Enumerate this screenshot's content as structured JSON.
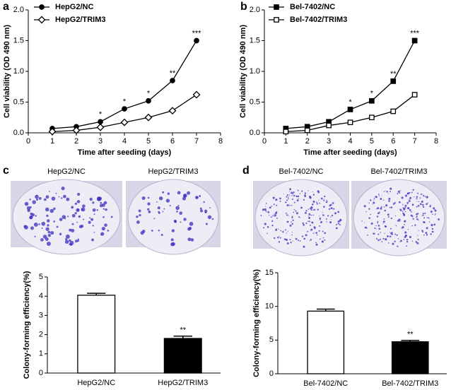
{
  "chart_data": [
    {
      "type": "line",
      "panel": "a",
      "x_label": "Time after seeding (days)",
      "y_label": "Cell viability (OD 490 nm)",
      "x": [
        1,
        2,
        3,
        4,
        5,
        6,
        7
      ],
      "series": [
        {
          "name": "HepG2/NC",
          "color": "#000000",
          "marker": "circle",
          "marker_fill": "#000000",
          "values": [
            0.07,
            0.1,
            0.18,
            0.39,
            0.52,
            0.85,
            1.5
          ]
        },
        {
          "name": "HepG2/TRIM3",
          "color": "#000000",
          "marker": "diamond",
          "marker_fill": "#ffffff",
          "values": [
            0.02,
            0.04,
            0.09,
            0.17,
            0.25,
            0.36,
            0.62
          ]
        }
      ],
      "annotations": [
        {
          "x": 3,
          "text": "*"
        },
        {
          "x": 4,
          "text": "*"
        },
        {
          "x": 5,
          "text": "*"
        },
        {
          "x": 6,
          "text": "**"
        },
        {
          "x": 7,
          "text": "***"
        }
      ],
      "xlim": [
        0,
        8
      ],
      "xticks": [
        0,
        1,
        2,
        3,
        4,
        5,
        6,
        7,
        8
      ],
      "ylim": [
        0,
        2
      ],
      "yticks": [
        {
          "value": 0,
          "label": "0.0"
        },
        {
          "value": 0.5,
          "label": "0.5"
        },
        {
          "value": 1,
          "label": "1.0"
        },
        {
          "value": 1.5,
          "label": "1.5"
        },
        {
          "value": 2,
          "label": "2.0"
        }
      ],
      "legend": "upper left"
    },
    {
      "type": "line",
      "panel": "b",
      "x_label": "Time after seeding (days)",
      "y_label": "Cell viability (OD 490 nm)",
      "x": [
        1,
        2,
        3,
        4,
        5,
        6,
        7
      ],
      "series": [
        {
          "name": "Bel-7402/NC",
          "color": "#000000",
          "marker": "square",
          "marker_fill": "#000000",
          "values": [
            0.07,
            0.1,
            0.18,
            0.38,
            0.52,
            0.84,
            1.5
          ]
        },
        {
          "name": "Bel-7402/TRIM3",
          "color": "#000000",
          "marker": "square",
          "marker_fill": "#ffffff",
          "values": [
            0.02,
            0.04,
            0.12,
            0.17,
            0.25,
            0.35,
            0.62
          ]
        }
      ],
      "annotations": [
        {
          "x": 4,
          "text": "*"
        },
        {
          "x": 5,
          "text": "*"
        },
        {
          "x": 6,
          "text": "**"
        },
        {
          "x": 7,
          "text": "***"
        }
      ],
      "xlim": [
        0,
        8
      ],
      "xticks": [
        0,
        1,
        2,
        3,
        4,
        5,
        6,
        7,
        8
      ],
      "ylim": [
        0,
        2
      ],
      "yticks": [
        {
          "value": 0,
          "label": "0.0"
        },
        {
          "value": 0.5,
          "label": "0.5"
        },
        {
          "value": 1,
          "label": "1.0"
        },
        {
          "value": 1.5,
          "label": "1.5"
        },
        {
          "value": 2,
          "label": "2.0"
        }
      ],
      "legend": "upper left"
    },
    {
      "type": "bar",
      "panel": "c",
      "image_labels": [
        "HepG2/NC",
        "HepG2/TRIM3"
      ],
      "y_label": "Colony-forming efficiency(%)",
      "categories": [
        "HepG2/NC",
        "HepG2/TRIM3"
      ],
      "values": [
        4.05,
        1.8
      ],
      "errors": [
        0.1,
        0.12
      ],
      "colors": [
        "#ffffff",
        "#000000"
      ],
      "annotations": [
        {
          "category": "HepG2/TRIM3",
          "text": "**"
        }
      ],
      "ylim": [
        0,
        5
      ],
      "yticks": [
        0,
        1,
        2,
        3,
        4,
        5
      ]
    },
    {
      "type": "bar",
      "panel": "d",
      "image_labels": [
        "Bel-7402/NC",
        "Bel-7402/TRIM3"
      ],
      "y_label": "Colony-forming efficiency(%)",
      "categories": [
        "Bel-7402/NC",
        "Bel-7402/TRIM3"
      ],
      "values": [
        9.3,
        4.75
      ],
      "errors": [
        0.3,
        0.2
      ],
      "colors": [
        "#ffffff",
        "#000000"
      ],
      "annotations": [
        {
          "category": "Bel-7402/TRIM3",
          "text": "**"
        }
      ],
      "ylim": [
        0,
        15
      ],
      "yticks": [
        0,
        5,
        10,
        15
      ]
    }
  ]
}
